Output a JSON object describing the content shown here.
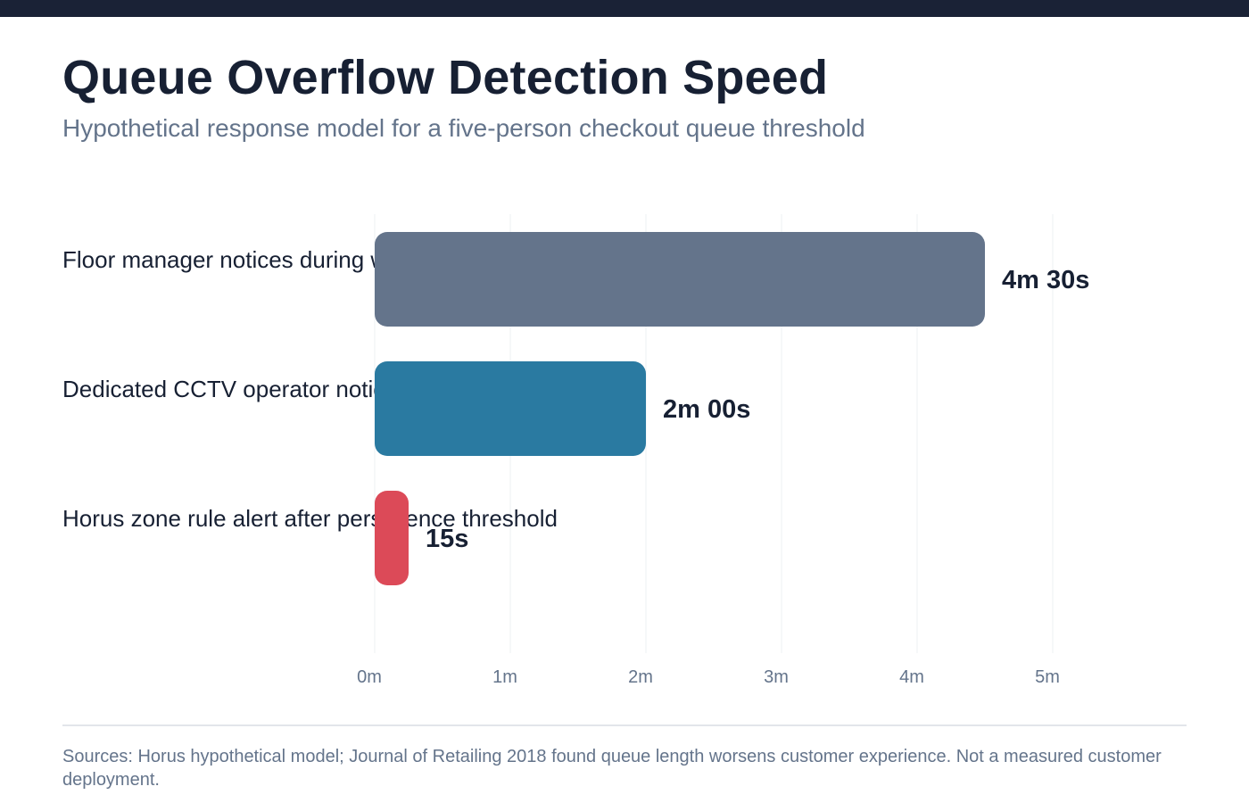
{
  "header": {
    "title": "Queue Overflow Detection Speed",
    "subtitle": "Hypothetical response model for a five-person checkout queue threshold"
  },
  "chart_data": {
    "type": "bar",
    "orientation": "horizontal",
    "categories": [
      "Floor manager notices during walk-through",
      "Dedicated CCTV operator notices",
      "Horus zone rule alert after persistence threshold"
    ],
    "values": [
      270,
      120,
      15
    ],
    "value_unit": "seconds",
    "value_labels": [
      "4m 30s",
      "2m 00s",
      "15s"
    ],
    "colors": [
      "#64748b",
      "#2a7aa1",
      "#dc4a58"
    ],
    "xlim": [
      0,
      300
    ],
    "xticks": [
      0,
      60,
      120,
      180,
      240,
      300
    ],
    "xtick_labels": [
      "0m",
      "1m",
      "2m",
      "3m",
      "4m",
      "5m"
    ],
    "grid": true,
    "xlabel": "",
    "ylabel": ""
  },
  "footer": {
    "sources": "Sources: Horus hypothetical model; Journal of Retailing 2018 found queue length worsens customer experience. Not a measured customer deployment."
  }
}
